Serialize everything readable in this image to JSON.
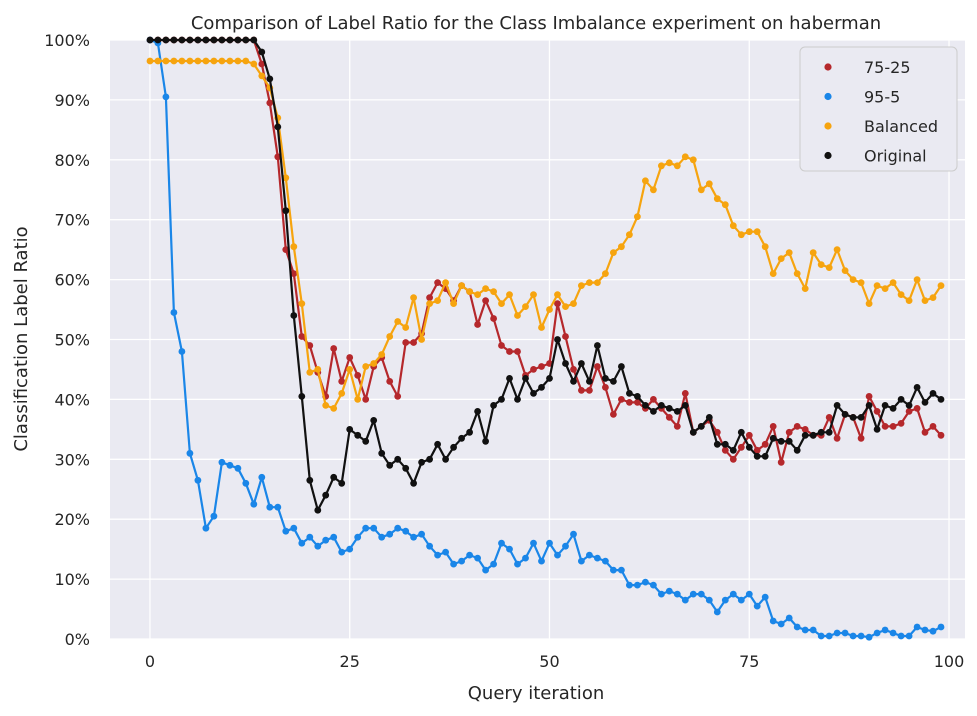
{
  "chart_data": {
    "type": "line",
    "title": "Comparison of Label Ratio for the Class Imbalance experiment on haberman",
    "xlabel": "Query iteration",
    "ylabel": "Classification Label Ratio",
    "xlim": [
      -5,
      102
    ],
    "ylim": [
      0,
      100
    ],
    "x_ticks": [
      0,
      25,
      50,
      75,
      100
    ],
    "y_ticks": [
      0,
      10,
      20,
      30,
      40,
      50,
      60,
      70,
      80,
      90,
      100
    ],
    "y_tick_labels": [
      "0%",
      "10%",
      "20%",
      "30%",
      "40%",
      "50%",
      "60%",
      "70%",
      "80%",
      "90%",
      "100%"
    ],
    "background": "#eaeaf2",
    "grid": true,
    "legend_position": "top-right",
    "marker": "circle",
    "series": [
      {
        "name": "75-25",
        "color": "#b5282c",
        "values": [
          100,
          100,
          100,
          100,
          100,
          100,
          100,
          100,
          100,
          100,
          100,
          100,
          100,
          100,
          96,
          89.5,
          80.5,
          65,
          61,
          50.5,
          49,
          44.5,
          40.5,
          48.5,
          43,
          47,
          44,
          40,
          45.5,
          47,
          43,
          40.5,
          49.5,
          49.5,
          51,
          57,
          59.5,
          58.5,
          56.5,
          59,
          58,
          52.5,
          56.5,
          53.5,
          49,
          48,
          48,
          44,
          45,
          45.5,
          46,
          56,
          50.5,
          45,
          41.5,
          41.5,
          45.5,
          42,
          37.5,
          40,
          39.5,
          39.5,
          38.5,
          40,
          38.5,
          37,
          35.5,
          41,
          34.5,
          35.5,
          36.5,
          34.5,
          31.5,
          30,
          32,
          34,
          31.5,
          32.5,
          35.5,
          29.5,
          34.5,
          35.5,
          35,
          34,
          34,
          37,
          33.5,
          37.5,
          37,
          33.5,
          40.5,
          38,
          35.5,
          35.5,
          36,
          38,
          38.5,
          34.5,
          35.5,
          34
        ]
      },
      {
        "name": "95-5",
        "color": "#1a86e8",
        "values": [
          100,
          99.5,
          90.5,
          54.5,
          48,
          31,
          26.5,
          18.5,
          20.5,
          29.5,
          29,
          28.5,
          26,
          22.5,
          27,
          22,
          22,
          18,
          18.5,
          16,
          17,
          15.5,
          16.5,
          17,
          14.5,
          15,
          17,
          18.5,
          18.5,
          17,
          17.5,
          18.5,
          18,
          17,
          17.5,
          15.5,
          14,
          14.5,
          12.5,
          13,
          14,
          13.5,
          11.5,
          12.5,
          16,
          15,
          12.5,
          13.5,
          16,
          13,
          16,
          14,
          15.5,
          17.5,
          13,
          14,
          13.5,
          13,
          11.5,
          11.5,
          9,
          9,
          9.5,
          9,
          7.5,
          8,
          7.5,
          6.5,
          7.5,
          7.5,
          6.5,
          4.5,
          6.5,
          7.5,
          6.5,
          7.5,
          5.5,
          7,
          3,
          2.5,
          3.5,
          2,
          1.5,
          1.5,
          0.5,
          0.5,
          1,
          1,
          0.5,
          0.5,
          0.3,
          1,
          1.5,
          1,
          0.5,
          0.5,
          2,
          1.5,
          1.3,
          2
        ]
      },
      {
        "name": "Balanced",
        "color": "#f6a40f",
        "values": [
          96.5,
          96.5,
          96.5,
          96.5,
          96.5,
          96.5,
          96.5,
          96.5,
          96.5,
          96.5,
          96.5,
          96.5,
          96.5,
          96,
          94,
          92,
          87,
          77,
          65.5,
          56,
          44.5,
          45,
          39,
          38.5,
          41,
          45,
          40,
          45.5,
          46,
          47.5,
          50.5,
          53,
          52,
          57,
          50,
          56,
          56.5,
          59.5,
          56,
          59,
          58,
          57.5,
          58.5,
          58,
          56,
          57.5,
          54,
          55.5,
          57.5,
          52,
          55,
          57.5,
          55.5,
          56,
          59,
          59.5,
          59.5,
          61,
          64.5,
          65.5,
          67.5,
          70.5,
          76.5,
          75,
          79,
          79.5,
          79,
          80.5,
          80,
          75,
          76,
          73.5,
          72.5,
          69,
          67.5,
          68,
          68,
          65.5,
          61,
          63.5,
          64.5,
          61,
          58.5,
          64.5,
          62.5,
          62,
          65,
          61.5,
          60,
          59.5,
          56,
          59,
          58.5,
          59.5,
          57.5,
          56.5,
          60,
          56.5,
          57,
          59
        ]
      },
      {
        "name": "Original",
        "color": "#111111",
        "values": [
          100,
          100,
          100,
          100,
          100,
          100,
          100,
          100,
          100,
          100,
          100,
          100,
          100,
          100,
          98,
          93.5,
          85.5,
          71.5,
          54,
          40.5,
          26.5,
          21.5,
          24,
          27,
          26,
          35,
          34,
          33,
          36.5,
          31,
          29,
          30,
          28.5,
          26,
          29.5,
          30,
          32.5,
          30,
          32,
          33.5,
          34.5,
          38,
          33,
          39,
          40,
          43.5,
          40,
          43.5,
          41,
          42,
          43.5,
          50,
          46,
          43,
          46,
          43,
          49,
          43.5,
          43,
          45.5,
          41,
          40.5,
          39,
          38,
          39,
          38.5,
          38,
          39,
          34.5,
          35.5,
          37,
          32.5,
          32.5,
          31.5,
          34.5,
          32,
          30.5,
          30.5,
          33.5,
          33,
          33,
          31.5,
          34,
          34,
          34.5,
          34.5,
          39,
          37.5,
          37,
          37,
          39,
          35,
          39,
          38.5,
          40,
          39,
          42,
          39.5,
          41,
          40
        ]
      }
    ]
  }
}
